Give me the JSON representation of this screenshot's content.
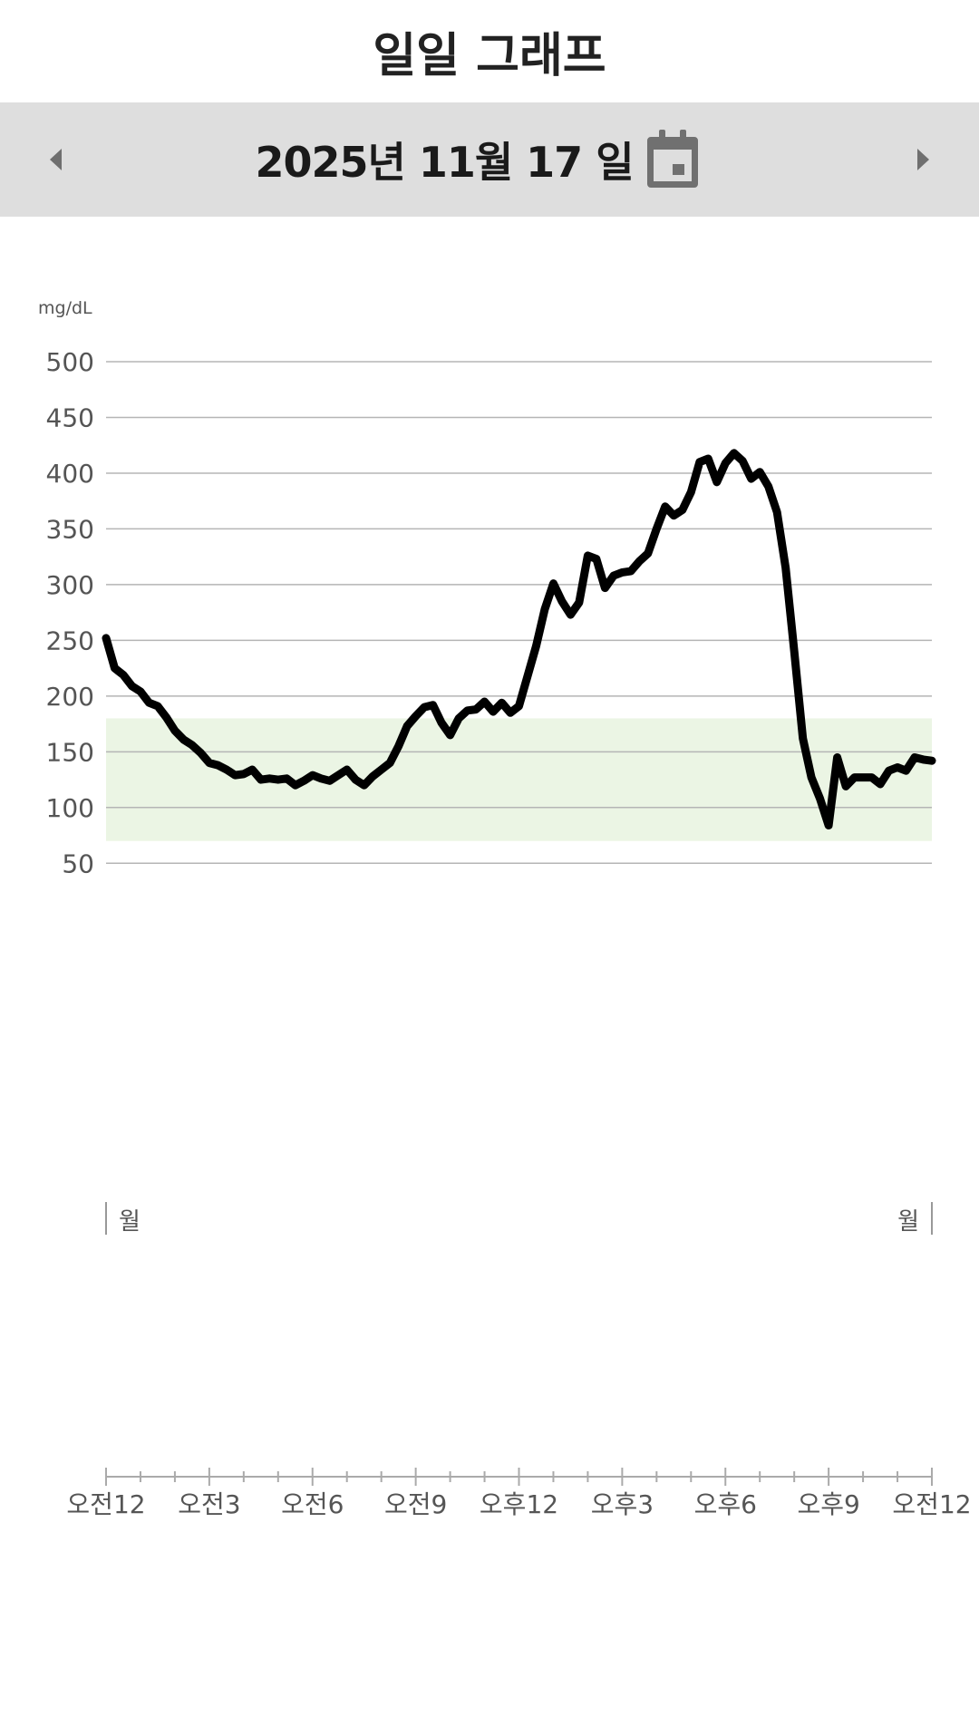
{
  "header": {
    "title": "일일 그래프"
  },
  "date_nav": {
    "date_label": "2025년 11월 17 일",
    "prev_icon": "triangle-left-icon",
    "next_icon": "triangle-right-icon",
    "calendar_icon": "calendar-icon"
  },
  "colors": {
    "target_band": "#ebf5e4",
    "line": "#000000",
    "grid": "#b5b5b5",
    "date_bar": "#dedede"
  },
  "chart_data": {
    "type": "line",
    "unit_label": "mg/dL",
    "ylim": [
      50,
      500
    ],
    "yticks": [
      500,
      450,
      400,
      350,
      300,
      250,
      200,
      150,
      100,
      50
    ],
    "target_range": [
      70,
      180
    ],
    "x_tick_labels": [
      "오전12",
      "오전3",
      "오전6",
      "오전9",
      "오후12",
      "오후3",
      "오후6",
      "오후9",
      "오전12"
    ],
    "x_range_hours": [
      0,
      24
    ],
    "day_markers": {
      "start": "월",
      "end": "월"
    },
    "series": [
      {
        "x": [
          0.0,
          0.25,
          0.5,
          0.75,
          1.0,
          1.25,
          1.5,
          1.75,
          2.0,
          2.25,
          2.5,
          2.75,
          3.0,
          3.25,
          3.5,
          3.75,
          4.0,
          4.25,
          4.5,
          4.75,
          5.0,
          5.25,
          5.5,
          5.75,
          6.0,
          6.25,
          6.5,
          6.75,
          7.0,
          7.25,
          7.5,
          7.75,
          8.0,
          8.25,
          8.5,
          8.75,
          9.0,
          9.25,
          9.5,
          9.75,
          10.0,
          10.25,
          10.5,
          10.75,
          11.0,
          11.25,
          11.5,
          11.75,
          12.0,
          12.25,
          12.5,
          12.75,
          13.0,
          13.25,
          13.5,
          13.75,
          14.0,
          14.25,
          14.5,
          14.75,
          15.0,
          15.25,
          15.5,
          15.75,
          16.0,
          16.25,
          16.5,
          16.75,
          17.0,
          17.25,
          17.5,
          17.75,
          18.0,
          18.25,
          18.5,
          18.75,
          19.0,
          19.25,
          19.5,
          19.75,
          20.0,
          20.25,
          20.5,
          20.75,
          21.0,
          21.25,
          21.5,
          21.75,
          22.0,
          22.25,
          22.5,
          22.75,
          23.0,
          23.25,
          23.5,
          23.75,
          24.0
        ],
        "y": [
          252,
          225,
          219,
          209,
          204,
          194,
          191,
          181,
          169,
          161,
          156,
          149,
          140,
          138,
          134,
          129,
          130,
          134,
          125,
          126,
          125,
          126,
          120,
          124,
          129,
          126,
          124,
          129,
          134,
          125,
          120,
          128,
          134,
          140,
          155,
          173,
          182,
          190,
          192,
          176,
          165,
          180,
          187,
          188,
          195,
          186,
          194,
          185,
          191,
          218,
          245,
          278,
          301,
          285,
          273,
          284,
          326,
          323,
          297,
          308,
          311,
          312,
          321,
          328,
          350,
          370,
          362,
          367,
          383,
          410,
          413,
          392,
          409,
          418,
          411,
          395,
          401,
          388,
          365,
          315,
          240,
          162,
          127,
          108,
          84,
          145,
          119,
          127,
          127,
          127,
          121,
          133,
          136,
          133,
          145,
          143,
          142
        ]
      }
    ]
  }
}
